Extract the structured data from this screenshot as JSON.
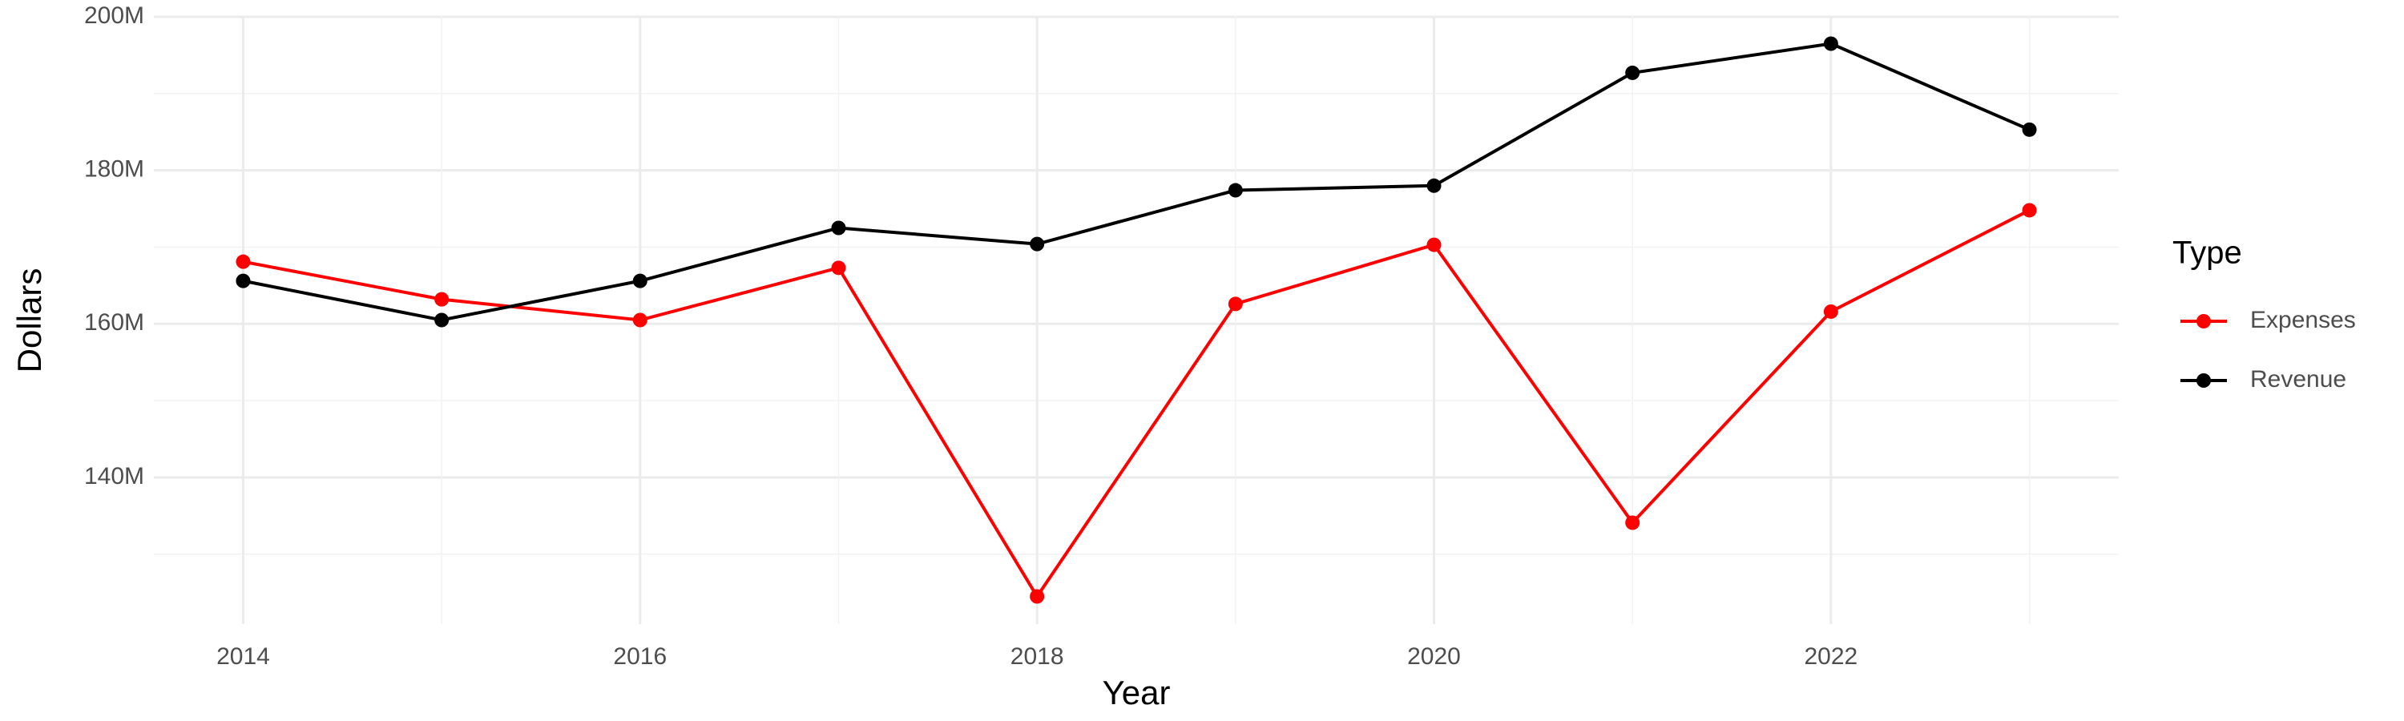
{
  "chart_data": {
    "type": "line",
    "x_label": "Year",
    "y_label": "Dollars",
    "legend_title": "Type",
    "x": [
      2014,
      2015,
      2016,
      2017,
      2018,
      2019,
      2020,
      2021,
      2022,
      2023
    ],
    "series": [
      {
        "name": "Expenses",
        "color": "#ff0000",
        "values": [
          168100000,
          163200000,
          160500000,
          167300000,
          124500000,
          162600000,
          170300000,
          134100000,
          161600000,
          174800000
        ]
      },
      {
        "name": "Revenue",
        "color": "#000000",
        "values": [
          165600000,
          160500000,
          165600000,
          172500000,
          170400000,
          177400000,
          178000000,
          192700000,
          196500000,
          185300000
        ]
      }
    ],
    "xlim": [
      2013.55,
      2023.45
    ],
    "xticks": [
      2014,
      2016,
      2018,
      2020,
      2022
    ],
    "ylim": [
      120900000,
      200100000
    ],
    "yticks": [
      {
        "value": 140000000,
        "label": "140M"
      },
      {
        "value": 160000000,
        "label": "160M"
      },
      {
        "value": 180000000,
        "label": "180M"
      },
      {
        "value": 200000000,
        "label": "200M"
      }
    ],
    "grid": true,
    "legend_position": "right"
  }
}
